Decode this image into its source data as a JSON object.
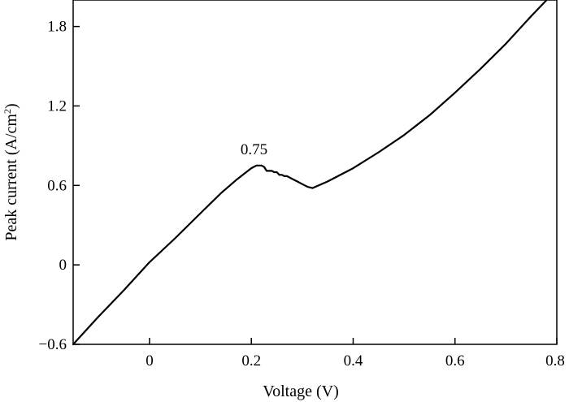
{
  "chart_data": {
    "type": "line",
    "title": "",
    "xlabel": "Voltage (V)",
    "ylabel_main": "Peak current (A/cm",
    "ylabel_sup": "2",
    "ylabel_close": ")",
    "xlim": [
      -0.15,
      0.8
    ],
    "ylim": [
      -0.6,
      2.0
    ],
    "xticks": [
      0,
      0.2,
      0.4,
      0.6,
      0.8
    ],
    "xtick_labels": [
      "0",
      "0.2",
      "0.4",
      "0.6",
      "0.8"
    ],
    "yticks": [
      -0.6,
      0,
      0.6,
      1.2,
      1.8
    ],
    "ytick_labels": [
      "−0.6",
      "0",
      "0.6",
      "1.2",
      "1.8"
    ],
    "grid": false,
    "annotation": {
      "text": "0.75",
      "x": 0.21,
      "y": 0.75
    },
    "series": [
      {
        "x": [
          -0.15,
          -0.1,
          -0.05,
          0.0,
          0.05,
          0.1,
          0.14,
          0.17,
          0.19,
          0.2,
          0.21,
          0.22,
          0.225,
          0.23,
          0.235,
          0.24,
          0.245,
          0.25,
          0.255,
          0.26,
          0.265,
          0.27,
          0.28,
          0.29,
          0.3,
          0.31,
          0.32,
          0.35,
          0.4,
          0.45,
          0.5,
          0.55,
          0.6,
          0.65,
          0.7,
          0.75,
          0.78
        ],
        "y": [
          -0.6,
          -0.39,
          -0.19,
          0.02,
          0.2,
          0.39,
          0.54,
          0.64,
          0.7,
          0.73,
          0.75,
          0.75,
          0.74,
          0.71,
          0.71,
          0.71,
          0.7,
          0.7,
          0.68,
          0.68,
          0.67,
          0.67,
          0.65,
          0.63,
          0.61,
          0.59,
          0.58,
          0.63,
          0.73,
          0.85,
          0.98,
          1.13,
          1.3,
          1.48,
          1.67,
          1.88,
          2.0
        ]
      }
    ]
  }
}
